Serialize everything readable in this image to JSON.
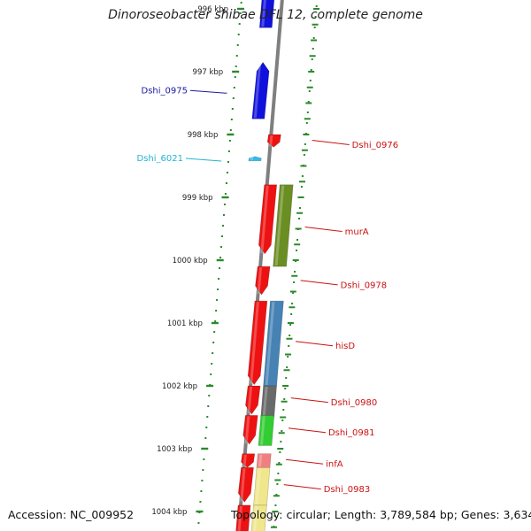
{
  "title": "Dinoroseobacter shibae DFL 12, complete genome",
  "accession_label": "Accession: NC_009952",
  "summary_label": "Topology: circular; Length: 3,789,584 bp; Genes: 3,634",
  "kbp_ticks": [
    {
      "pos": 996,
      "label": "996 kbp"
    },
    {
      "pos": 997,
      "label": "997 kbp"
    },
    {
      "pos": 998,
      "label": "998 kbp"
    },
    {
      "pos": 999,
      "label": "999 kbp"
    },
    {
      "pos": 1000,
      "label": "1000 kbp"
    },
    {
      "pos": 1001,
      "label": "1001 kbp"
    },
    {
      "pos": 1002,
      "label": "1002 kbp"
    },
    {
      "pos": 1003,
      "label": "1003 kbp"
    },
    {
      "pos": 1004,
      "label": "1004 kbp"
    }
  ],
  "features": [
    {
      "track": "left-outer",
      "start": 995.7,
      "end": 996.3,
      "color": "#1111dd",
      "dir": "none"
    },
    {
      "track": "left-outer",
      "start": 996.85,
      "end": 997.75,
      "color": "#1111dd",
      "dir": "up"
    },
    {
      "track": "left-outer",
      "start": 998.35,
      "end": 998.42,
      "color": "#33bbee",
      "dir": "up"
    },
    {
      "track": "right-inner",
      "start": 998.0,
      "end": 998.2,
      "color": "#ee1111",
      "dir": "down"
    },
    {
      "track": "right-inner",
      "start": 998.8,
      "end": 999.9,
      "color": "#ee1111",
      "dir": "down"
    },
    {
      "track": "right-outer",
      "start": 998.8,
      "end": 1000.1,
      "color": "#6b8e23",
      "dir": "none"
    },
    {
      "track": "right-inner",
      "start": 1000.1,
      "end": 1000.55,
      "color": "#ee1111",
      "dir": "down"
    },
    {
      "track": "right-inner",
      "start": 1000.65,
      "end": 1001.98,
      "color": "#ee1111",
      "dir": "down"
    },
    {
      "track": "right-outer",
      "start": 1000.65,
      "end": 1002.0,
      "color": "#4682b4",
      "dir": "none"
    },
    {
      "track": "right-inner",
      "start": 1002.0,
      "end": 1002.45,
      "color": "#ee1111",
      "dir": "down"
    },
    {
      "track": "right-outer",
      "start": 1002.0,
      "end": 1002.5,
      "color": "#696969",
      "dir": "none"
    },
    {
      "track": "right-inner",
      "start": 1002.47,
      "end": 1002.93,
      "color": "#ee1111",
      "dir": "down"
    },
    {
      "track": "right-outer",
      "start": 1002.47,
      "end": 1002.95,
      "color": "#32cd32",
      "dir": "none"
    },
    {
      "track": "right-inner",
      "start": 1003.08,
      "end": 1003.3,
      "color": "#ee1111",
      "dir": "down"
    },
    {
      "track": "right-outer",
      "start": 1003.08,
      "end": 1003.3,
      "color": "#f08080",
      "dir": "none"
    },
    {
      "track": "right-inner",
      "start": 1003.3,
      "end": 1003.85,
      "color": "#ee1111",
      "dir": "down"
    },
    {
      "track": "right-outer",
      "start": 1003.3,
      "end": 1003.9,
      "color": "#f0e68c",
      "dir": "none"
    },
    {
      "track": "right-inner",
      "start": 1003.9,
      "end": 1004.5,
      "color": "#ee1111",
      "dir": "none"
    },
    {
      "track": "right-outer",
      "start": 1003.9,
      "end": 1004.5,
      "color": "#f0e68c",
      "dir": "none"
    }
  ],
  "labels": [
    {
      "name": "Dshi_0975",
      "side": "left",
      "pos": 997.3,
      "color": "#1a1aa0"
    },
    {
      "name": "Dshi_6021",
      "side": "left",
      "pos": 998.38,
      "color": "#22b3d8"
    },
    {
      "name": "Dshi_0976",
      "side": "right",
      "pos": 998.12,
      "color": "#cc1111"
    },
    {
      "name": "murA",
      "side": "right",
      "pos": 999.5,
      "color": "#cc1111"
    },
    {
      "name": "Dshi_0978",
      "side": "right",
      "pos": 1000.35,
      "color": "#cc1111"
    },
    {
      "name": "hisD",
      "side": "right",
      "pos": 1001.32,
      "color": "#cc1111"
    },
    {
      "name": "Dshi_0980",
      "side": "right",
      "pos": 1002.22,
      "color": "#cc1111"
    },
    {
      "name": "Dshi_0981",
      "side": "right",
      "pos": 1002.7,
      "color": "#cc1111"
    },
    {
      "name": "infA",
      "side": "right",
      "pos": 1003.2,
      "color": "#cc1111"
    },
    {
      "name": "Dshi_0983",
      "side": "right",
      "pos": 1003.6,
      "color": "#cc1111"
    }
  ],
  "colors": {
    "backbone": "#7f7f7f",
    "tick_marks": "#2a8a2a",
    "forward_strand": "#1111dd",
    "reverse_strand": "#ee1111"
  }
}
